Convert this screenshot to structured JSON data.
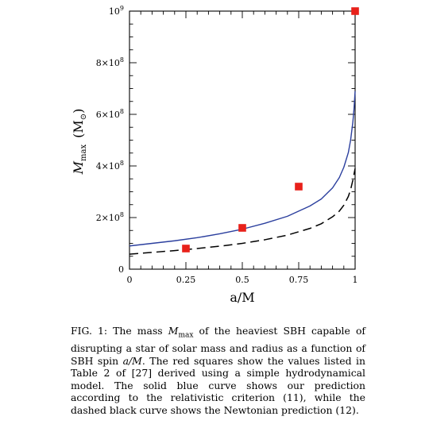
{
  "chart_data": {
    "type": "line",
    "xlabel": "a/M",
    "ylabel_main": "M",
    "ylabel_sub": "max",
    "ylabel_unit": "(M",
    "ylabel_unit_sub": "⊙",
    "ylabel_unit_close": ")",
    "xlim": [
      0,
      1
    ],
    "ylim": [
      0,
      1000000000
    ],
    "x_ticks": [
      0,
      0.25,
      0.5,
      0.75,
      1
    ],
    "x_tick_labels": [
      "0",
      "0.25",
      "0.5",
      "0.75",
      "1"
    ],
    "y_ticks": [
      0,
      200000000,
      400000000,
      600000000,
      800000000,
      1000000000
    ],
    "y_tick_labels": [
      {
        "mant": "0",
        "exp": ""
      },
      {
        "mant": "2×10",
        "exp": "8"
      },
      {
        "mant": "4×10",
        "exp": "8"
      },
      {
        "mant": "6×10",
        "exp": "8"
      },
      {
        "mant": "8×10",
        "exp": "8"
      },
      {
        "mant": "10",
        "exp": "9"
      }
    ],
    "series": [
      {
        "style": "solid",
        "color": "#2b3f9e",
        "x": [
          0,
          0.1,
          0.2,
          0.3,
          0.4,
          0.5,
          0.6,
          0.7,
          0.8,
          0.85,
          0.9,
          0.93,
          0.95,
          0.97,
          0.98,
          0.99,
          0.995,
          1.0
        ],
        "y": [
          90000000,
          100000000,
          110000000,
          122000000,
          137000000,
          155000000,
          178000000,
          205000000,
          245000000,
          272000000,
          315000000,
          355000000,
          395000000,
          452000000,
          500000000,
          570000000,
          620000000,
          690000000
        ]
      },
      {
        "style": "dashed",
        "color": "#000000",
        "x": [
          0,
          0.1,
          0.2,
          0.3,
          0.4,
          0.5,
          0.6,
          0.7,
          0.8,
          0.85,
          0.9,
          0.93,
          0.95,
          0.97,
          0.98,
          0.99,
          1.0
        ],
        "y": [
          58000000,
          65000000,
          72000000,
          80000000,
          89000000,
          100000000,
          114000000,
          132000000,
          158000000,
          176000000,
          203000000,
          225000000,
          248000000,
          282000000,
          308000000,
          345000000,
          390000000
        ]
      },
      {
        "style": "markers",
        "marker": "square",
        "color": "#e8211a",
        "x": [
          0.25,
          0.5,
          0.75,
          1.0
        ],
        "y": [
          80000000,
          160000000,
          320000000,
          1000000000
        ]
      }
    ]
  },
  "caption": {
    "lead": "FIG. 1: The mass ",
    "m": "M",
    "msub": "max",
    "part2": " of the heaviest SBH capable of disrupting a star of solar mass and radius as a function of SBH spin ",
    "aM": "a/M",
    "part3": ". The red squares show the values listed in Table 2 of [27] derived using a simple hydrodynamical model. The solid blue curve shows our prediction according to the relativistic criterion (11), while the dashed black curve shows the Newtonian prediction (12)."
  }
}
